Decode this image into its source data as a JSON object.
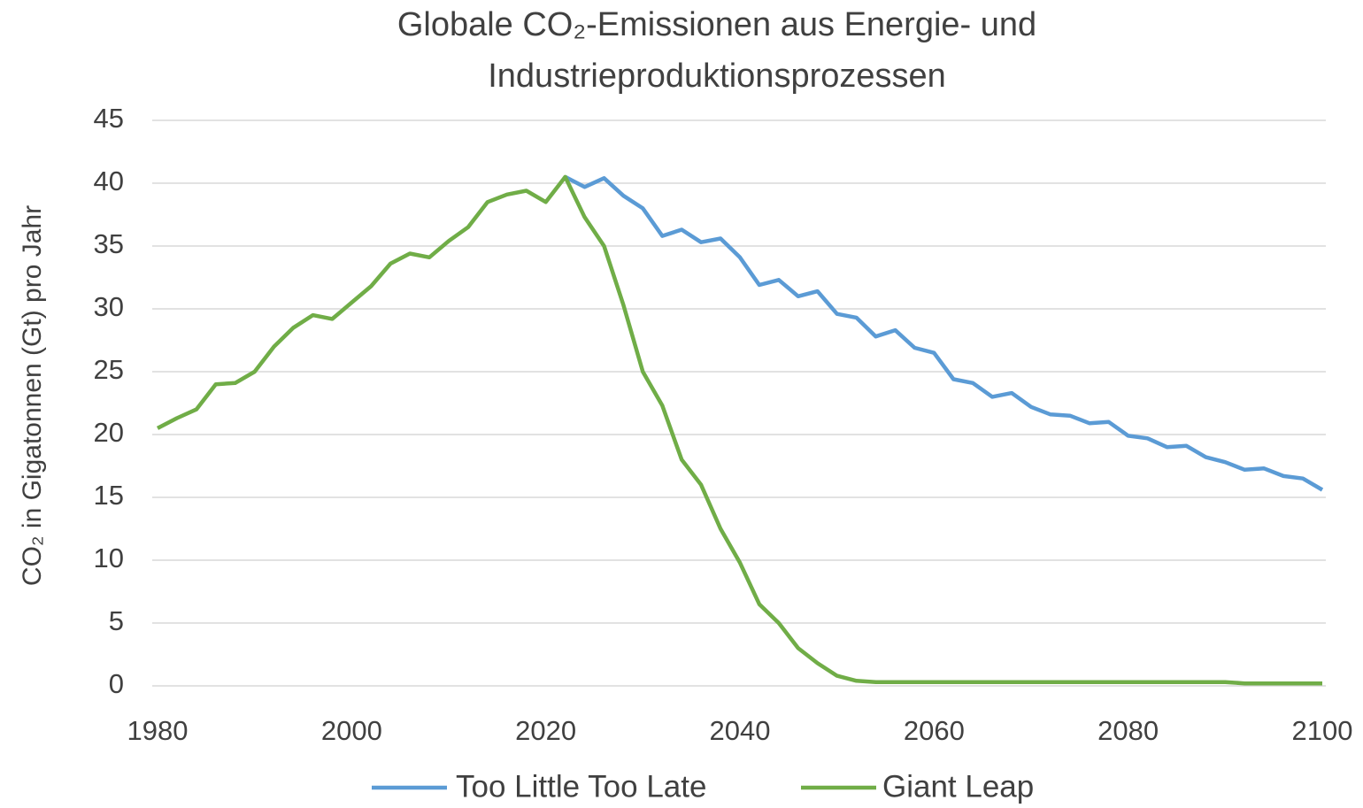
{
  "chart_data": {
    "type": "line",
    "title": [
      "Globale CO₂-Emissionen aus Energie- und",
      "Industrieproduktionsprozessen"
    ],
    "y_label": "CO₂ in Gigatonnen (Gt) pro Jahr",
    "x": [
      1980,
      1982,
      1984,
      1986,
      1988,
      1990,
      1992,
      1994,
      1996,
      1998,
      2000,
      2002,
      2004,
      2006,
      2008,
      2010,
      2012,
      2014,
      2016,
      2018,
      2020,
      2022,
      2024,
      2026,
      2028,
      2030,
      2032,
      2034,
      2036,
      2038,
      2040,
      2042,
      2044,
      2046,
      2048,
      2050,
      2052,
      2054,
      2056,
      2058,
      2060,
      2062,
      2064,
      2066,
      2068,
      2070,
      2072,
      2074,
      2076,
      2078,
      2080,
      2082,
      2084,
      2086,
      2088,
      2090,
      2092,
      2094,
      2096,
      2098,
      2100
    ],
    "series": [
      {
        "name": "Too Little Too Late",
        "color": "#5b9bd5",
        "values": [
          null,
          null,
          null,
          null,
          null,
          null,
          null,
          null,
          null,
          null,
          null,
          null,
          null,
          null,
          null,
          null,
          null,
          null,
          null,
          null,
          null,
          40.5,
          39.7,
          40.4,
          39.0,
          38.0,
          35.8,
          36.3,
          35.3,
          35.6,
          34.1,
          31.9,
          32.3,
          31.0,
          31.4,
          29.6,
          29.3,
          27.8,
          28.3,
          26.9,
          26.5,
          24.4,
          24.1,
          23.0,
          23.3,
          22.2,
          21.6,
          21.5,
          20.9,
          21.0,
          19.9,
          19.7,
          19.0,
          19.1,
          18.2,
          17.8,
          17.2,
          17.3,
          16.7,
          16.5,
          15.6
        ]
      },
      {
        "name": "Giant Leap",
        "color": "#70ad47",
        "values": [
          20.5,
          21.3,
          22.0,
          24.0,
          24.1,
          25.0,
          27.0,
          28.5,
          29.5,
          29.2,
          30.5,
          31.8,
          33.6,
          34.4,
          34.1,
          35.4,
          36.5,
          38.5,
          39.1,
          39.4,
          38.5,
          40.5,
          37.3,
          35.0,
          30.3,
          25.0,
          22.3,
          18.0,
          16.0,
          12.5,
          9.8,
          6.5,
          5.0,
          3.0,
          1.8,
          0.8,
          0.4,
          0.3,
          0.3,
          0.3,
          0.3,
          0.3,
          0.3,
          0.3,
          0.3,
          0.3,
          0.3,
          0.3,
          0.3,
          0.3,
          0.3,
          0.3,
          0.3,
          0.3,
          0.3,
          0.3,
          0.2,
          0.2,
          0.2,
          0.2,
          0.2
        ]
      }
    ],
    "xlim": [
      1980,
      2100
    ],
    "xticks": [
      1980,
      2000,
      2020,
      2040,
      2060,
      2080,
      2100
    ],
    "ylim": [
      0,
      45
    ],
    "yticks": [
      0,
      5,
      10,
      15,
      20,
      25,
      30,
      35,
      40,
      45
    ],
    "grid": true,
    "legend": "bottom"
  }
}
